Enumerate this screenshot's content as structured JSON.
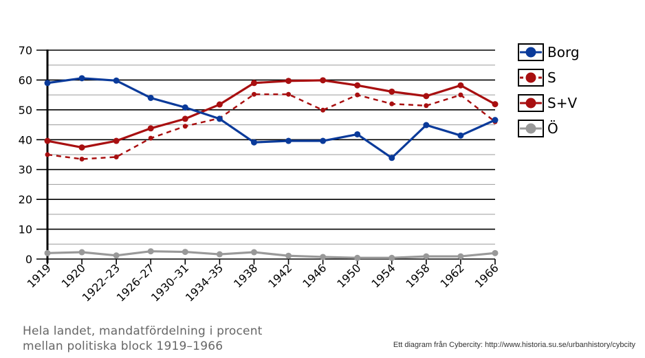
{
  "chart_data": {
    "type": "line",
    "categories": [
      "1919",
      "1920",
      "1922–23",
      "1926–27",
      "1930–31",
      "1934–35",
      "1938",
      "1942",
      "1946",
      "1950",
      "1954",
      "1958",
      "1962",
      "1966"
    ],
    "ylim": [
      0,
      70
    ],
    "yticks": [
      0,
      10,
      20,
      30,
      40,
      50,
      60,
      70
    ],
    "grid": true,
    "legend_position": "right",
    "series": [
      {
        "name": "Borg",
        "color": "#0a3a9a",
        "dashed": false,
        "values": [
          59,
          60.6,
          59.8,
          54,
          50.8,
          47,
          39.1,
          39.6,
          39.6,
          41.8,
          33.9,
          44.9,
          41.4,
          46.6
        ]
      },
      {
        "name": "S",
        "color": "#a80f10",
        "dashed": true,
        "values": [
          35,
          33.5,
          34.2,
          40.5,
          44.5,
          47.2,
          55.2,
          55.2,
          49.9,
          55,
          52,
          51.4,
          55,
          46
        ]
      },
      {
        "name": "S+V",
        "color": "#a80f10",
        "dashed": false,
        "values": [
          39.6,
          37.4,
          39.6,
          43.8,
          47,
          51.8,
          59,
          59.7,
          59.9,
          58.2,
          56.1,
          54.6,
          58.2,
          51.9
        ]
      },
      {
        "name": "Ö",
        "color": "#999999",
        "dashed": false,
        "values": [
          2,
          2.3,
          1.2,
          2.6,
          2.4,
          1.6,
          2.3,
          1.1,
          0.7,
          0.4,
          0.4,
          0.9,
          0.9,
          2
        ]
      }
    ]
  },
  "caption": {
    "line1": "Hela landet, mandatfördelning i procent",
    "line2": "mellan politiska block 1919–1966"
  },
  "credit": "Ett diagram från Cybercity: http://www.historia.su.se/urbanhistory/cybcity"
}
